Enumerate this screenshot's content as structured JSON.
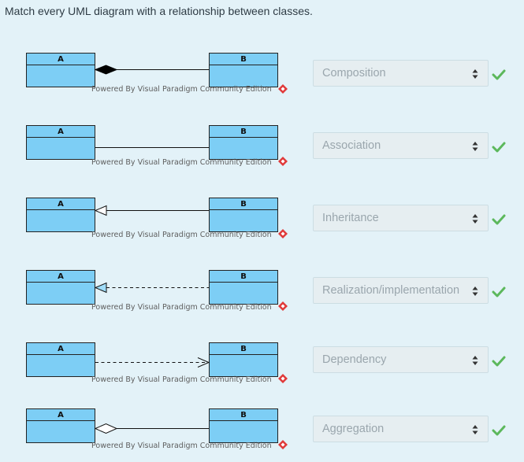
{
  "question": "Match every UML diagram with a relationship between classes.",
  "diagram": {
    "class_a": "A",
    "class_b": "B",
    "watermark": "Powered By Visual Paradigm Community Edition"
  },
  "rows": [
    {
      "relationship_shown": "composition",
      "selected": "Composition",
      "correct": true
    },
    {
      "relationship_shown": "association",
      "selected": "Association",
      "correct": true
    },
    {
      "relationship_shown": "inheritance",
      "selected": "Inheritance",
      "correct": true
    },
    {
      "relationship_shown": "realization",
      "selected": "Realization/implementation",
      "correct": true
    },
    {
      "relationship_shown": "dependency",
      "selected": "Dependency",
      "correct": true
    },
    {
      "relationship_shown": "aggregation",
      "selected": "Aggregation",
      "correct": true
    }
  ],
  "colors": {
    "class_fill": "#7dcef5",
    "check": "#5cb85c"
  }
}
